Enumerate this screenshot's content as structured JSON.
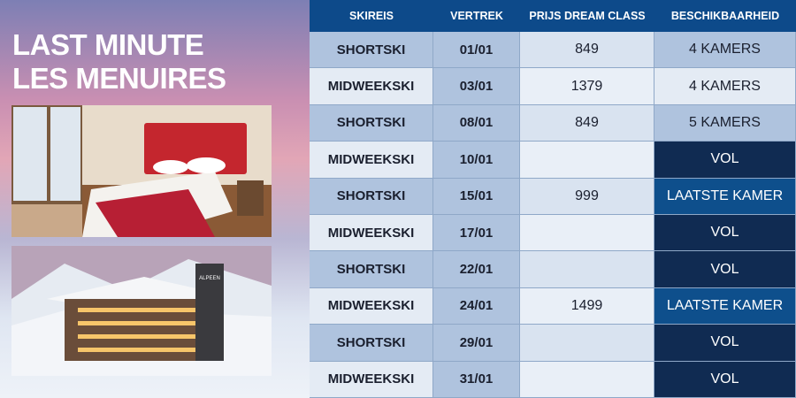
{
  "title": [
    "LAST MINUTE",
    "LES MENUIRES"
  ],
  "photo_sign": "ALPEEN",
  "table": {
    "header": [
      "SKIREIS",
      "VERTREK",
      "PRIJS DREAM CLASS",
      "BESCHIKBAARHEID"
    ],
    "rows": [
      [
        "SHORTSKI",
        "01/01",
        849,
        "4 KAMERS"
      ],
      [
        "MIDWEEKSKI",
        "03/01",
        1379,
        "4 KAMERS"
      ],
      [
        "SHORTSKI",
        "08/01",
        849,
        "5 KAMERS"
      ],
      [
        "MIDWEEKSKI",
        "10/01",
        null,
        "VOL"
      ],
      [
        "SHORTSKI",
        "15/01",
        999,
        "LAATSTE KAMER"
      ],
      [
        "MIDWEEKSKI",
        "17/01",
        null,
        "VOL"
      ],
      [
        "SHORTSKI",
        "22/01",
        null,
        "VOL"
      ],
      [
        "MIDWEEKSKI",
        "24/01",
        1499,
        "LAATSTE KAMER"
      ],
      [
        "SHORTSKI",
        "29/01",
        null,
        "VOL"
      ],
      [
        "MIDWEEKSKI",
        "31/01",
        null,
        "VOL"
      ]
    ]
  }
}
